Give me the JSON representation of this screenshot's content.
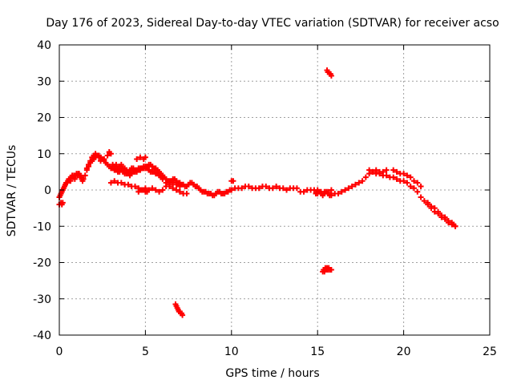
{
  "chart_data": {
    "type": "scatter",
    "title": "Day 176 of 2023, Sidereal Day-to-day VTEC variation (SDTVAR) for receiver acso",
    "xlabel": "GPS time / hours",
    "ylabel": "SDTVAR / TECUs",
    "xlim": [
      0,
      25
    ],
    "ylim": [
      -40,
      40
    ],
    "xticks": [
      0,
      5,
      10,
      15,
      20,
      25
    ],
    "yticks": [
      -40,
      -30,
      -20,
      -10,
      0,
      10,
      20,
      30,
      40
    ],
    "grid": true,
    "marker": "+",
    "color": "#ff0000",
    "series": [
      {
        "name": "SDTVAR",
        "x": [
          0.0,
          0.05,
          0.1,
          0.15,
          0.2,
          0.25,
          0.3,
          0.35,
          0.4,
          0.45,
          0.5,
          0.55,
          0.6,
          0.65,
          0.7,
          0.75,
          0.8,
          0.85,
          0.9,
          0.95,
          1.0,
          1.05,
          1.1,
          1.15,
          1.2,
          1.25,
          1.3,
          1.35,
          1.4,
          1.5,
          1.6,
          1.7,
          1.8,
          1.9,
          2.0,
          2.1,
          2.2,
          2.3,
          2.4,
          2.5,
          2.6,
          2.7,
          2.8,
          2.9,
          3.0,
          3.1,
          3.2,
          3.3,
          3.4,
          3.5,
          3.6,
          3.7,
          3.8,
          3.9,
          4.0,
          4.1,
          4.2,
          4.3,
          4.4,
          4.5,
          4.6,
          4.7,
          4.8,
          4.9,
          5.0,
          5.1,
          5.2,
          5.3,
          5.4,
          5.5,
          5.6,
          5.7,
          5.8,
          5.9,
          6.0,
          6.1,
          6.2,
          6.3,
          6.4,
          6.5,
          6.6,
          6.7,
          6.8,
          6.9,
          7.0,
          7.1,
          7.2,
          7.3,
          7.4,
          7.5,
          7.6,
          7.7,
          7.8,
          7.9,
          8.0,
          8.1,
          8.2,
          8.3,
          8.4,
          8.5,
          8.6,
          8.7,
          8.8,
          8.9,
          9.0,
          9.1,
          9.2,
          9.3,
          9.4,
          9.5,
          9.6,
          9.7,
          9.8,
          9.9,
          10.0,
          10.2,
          10.4,
          10.6,
          10.8,
          11.0,
          11.2,
          11.4,
          11.6,
          11.8,
          12.0,
          12.2,
          12.4,
          12.6,
          12.8,
          13.0,
          13.2,
          13.4,
          13.6,
          13.8,
          14.0,
          14.2,
          14.4,
          14.6,
          14.8,
          15.0,
          15.2,
          15.4,
          15.6,
          15.8,
          16.0,
          16.2,
          16.4,
          16.6,
          16.8,
          17.0,
          17.2,
          17.4,
          17.6,
          17.8,
          18.0,
          18.2,
          18.4,
          18.6,
          18.8,
          19.0,
          19.2,
          19.4,
          19.6,
          19.8,
          20.0,
          20.2,
          20.4,
          20.6,
          20.8,
          21.0,
          21.2,
          21.4,
          21.6,
          21.8,
          22.0,
          22.2,
          22.4,
          22.6,
          22.8,
          23.0,
          0.0,
          0.1,
          0.15,
          0.2,
          1.6,
          1.7,
          1.8,
          1.9,
          2.0,
          2.1,
          2.2,
          2.3,
          2.4,
          2.6,
          2.8,
          2.9,
          3.0,
          3.1,
          3.2,
          3.3,
          3.4,
          3.5,
          3.6,
          3.7,
          3.8,
          3.9,
          4.0,
          4.1,
          4.2,
          4.3,
          4.4,
          4.5,
          4.6,
          4.7,
          4.8,
          4.9,
          5.0,
          5.1,
          5.2,
          5.3,
          5.4,
          5.5,
          5.6,
          5.7,
          5.8,
          5.9,
          6.0,
          6.2,
          6.4,
          6.6,
          6.8,
          7.0,
          7.2,
          7.4,
          4.5,
          4.7,
          4.9,
          5.0,
          3.0,
          3.2,
          3.4,
          3.6,
          3.8,
          4.0,
          4.2,
          4.4,
          4.6,
          4.8,
          5.0,
          5.2,
          5.4,
          5.6,
          5.8,
          6.0,
          6.2,
          6.4,
          6.6,
          6.8,
          7.0,
          5.0,
          5.1,
          4.6,
          4.7,
          4.8,
          4.9,
          10.0,
          10.1,
          14.9,
          15.0,
          15.1,
          15.2,
          15.3,
          15.4,
          15.5,
          15.6,
          15.7,
          15.8,
          15.3,
          15.35,
          15.4,
          15.45,
          15.5,
          15.55,
          15.6,
          15.65,
          15.7,
          15.75,
          15.8,
          15.55,
          15.6,
          15.65,
          15.7,
          15.75,
          15.8,
          6.75,
          6.8,
          6.85,
          6.9,
          6.95,
          7.0,
          7.05,
          7.1,
          7.15,
          19.4,
          19.6,
          19.8,
          20.0,
          20.2,
          20.4,
          20.6,
          20.8,
          21.0,
          18.0,
          18.2,
          18.4,
          18.6,
          18.8,
          19.0,
          21.4,
          21.6,
          21.8,
          22.0,
          22.2,
          22.4,
          22.6,
          22.8,
          22.9,
          23.0
        ],
        "y": [
          -2.0,
          -1.5,
          -1.0,
          -0.5,
          0.0,
          0.5,
          1.0,
          1.5,
          2.0,
          2.0,
          2.5,
          3.0,
          3.0,
          2.5,
          3.5,
          4.0,
          3.5,
          4.0,
          3.0,
          4.0,
          4.5,
          4.0,
          4.5,
          4.5,
          4.0,
          3.5,
          3.0,
          2.5,
          3.0,
          4.0,
          5.5,
          6.5,
          7.5,
          8.0,
          8.5,
          9.0,
          9.5,
          9.5,
          9.0,
          8.5,
          8.0,
          7.5,
          7.0,
          6.5,
          6.0,
          6.0,
          5.5,
          5.5,
          5.0,
          5.0,
          5.5,
          5.0,
          4.5,
          4.5,
          4.5,
          4.0,
          4.5,
          5.0,
          5.0,
          5.0,
          5.5,
          6.0,
          6.0,
          6.0,
          6.0,
          6.5,
          7.0,
          7.0,
          6.5,
          6.0,
          6.0,
          5.5,
          5.0,
          4.5,
          4.0,
          3.5,
          3.0,
          2.5,
          2.5,
          2.5,
          3.0,
          3.0,
          2.5,
          2.0,
          2.0,
          1.5,
          1.5,
          1.0,
          1.0,
          1.5,
          2.0,
          2.0,
          1.5,
          1.0,
          1.0,
          0.5,
          0.0,
          -0.5,
          -0.5,
          -0.5,
          -1.0,
          -1.0,
          -1.0,
          -1.5,
          -1.5,
          -1.0,
          -0.5,
          -0.5,
          -1.0,
          -1.0,
          -1.0,
          -0.5,
          -0.5,
          0.0,
          0.0,
          0.5,
          0.5,
          0.5,
          1.0,
          1.0,
          0.5,
          0.5,
          0.5,
          1.0,
          1.0,
          0.5,
          0.5,
          1.0,
          0.5,
          0.5,
          0.0,
          0.5,
          0.5,
          0.5,
          -0.5,
          -0.5,
          0.0,
          0.0,
          0.0,
          0.0,
          -0.5,
          -0.5,
          -0.5,
          0.0,
          -1.0,
          -1.0,
          -0.5,
          0.0,
          0.5,
          1.0,
          1.5,
          2.0,
          2.5,
          3.5,
          4.5,
          5.0,
          4.5,
          4.5,
          4.0,
          4.0,
          3.5,
          3.5,
          3.0,
          2.5,
          2.5,
          2.0,
          1.0,
          0.5,
          -0.5,
          -2.0,
          -3.0,
          -4.0,
          -5.0,
          -6.0,
          -6.5,
          -7.5,
          -8.0,
          -9.0,
          -9.5,
          -10.0,
          -4.0,
          -3.5,
          -4.0,
          -3.5,
          6.0,
          7.0,
          8.0,
          9.0,
          9.5,
          10.0,
          9.5,
          9.0,
          8.0,
          8.5,
          9.5,
          10.5,
          10.0,
          7.0,
          6.5,
          7.0,
          6.0,
          6.5,
          7.0,
          6.0,
          6.0,
          5.5,
          5.0,
          5.5,
          6.0,
          6.0,
          5.5,
          5.5,
          6.0,
          5.5,
          6.0,
          6.5,
          6.5,
          6.0,
          5.5,
          5.0,
          5.0,
          5.0,
          4.5,
          4.5,
          4.0,
          3.5,
          3.0,
          2.0,
          1.0,
          0.5,
          0.0,
          -0.5,
          -1.0,
          -1.0,
          8.5,
          9.0,
          8.5,
          9.0,
          2.0,
          2.5,
          2.0,
          2.0,
          1.5,
          1.5,
          1.0,
          1.0,
          0.5,
          0.0,
          0.5,
          0.0,
          0.5,
          0.0,
          -0.5,
          0.0,
          1.0,
          1.5,
          2.0,
          1.5,
          1.0,
          -0.5,
          -0.5,
          -0.5,
          0.0,
          0.0,
          0.0,
          2.5,
          2.5,
          -1.0,
          -1.0,
          -0.5,
          -1.0,
          -1.5,
          -1.0,
          -0.5,
          -1.0,
          -1.5,
          -1.5,
          -22.5,
          -22.0,
          -22.5,
          -21.5,
          -22.0,
          -21.5,
          -22.0,
          -21.5,
          -22.0,
          -22.0,
          -22.0,
          33.0,
          32.5,
          32.5,
          32.0,
          32.0,
          31.5,
          -31.5,
          -32.0,
          -32.5,
          -33.0,
          -33.5,
          -33.5,
          -34.0,
          -34.0,
          -34.5,
          5.5,
          5.0,
          4.5,
          4.5,
          4.0,
          3.5,
          2.5,
          2.0,
          1.0,
          5.5,
          5.0,
          5.5,
          5.0,
          5.0,
          5.5,
          -3.5,
          -4.5,
          -5.0,
          -6.0,
          -7.0,
          -7.5,
          -8.5,
          -9.0,
          -9.5,
          -10.0
        ]
      }
    ]
  }
}
